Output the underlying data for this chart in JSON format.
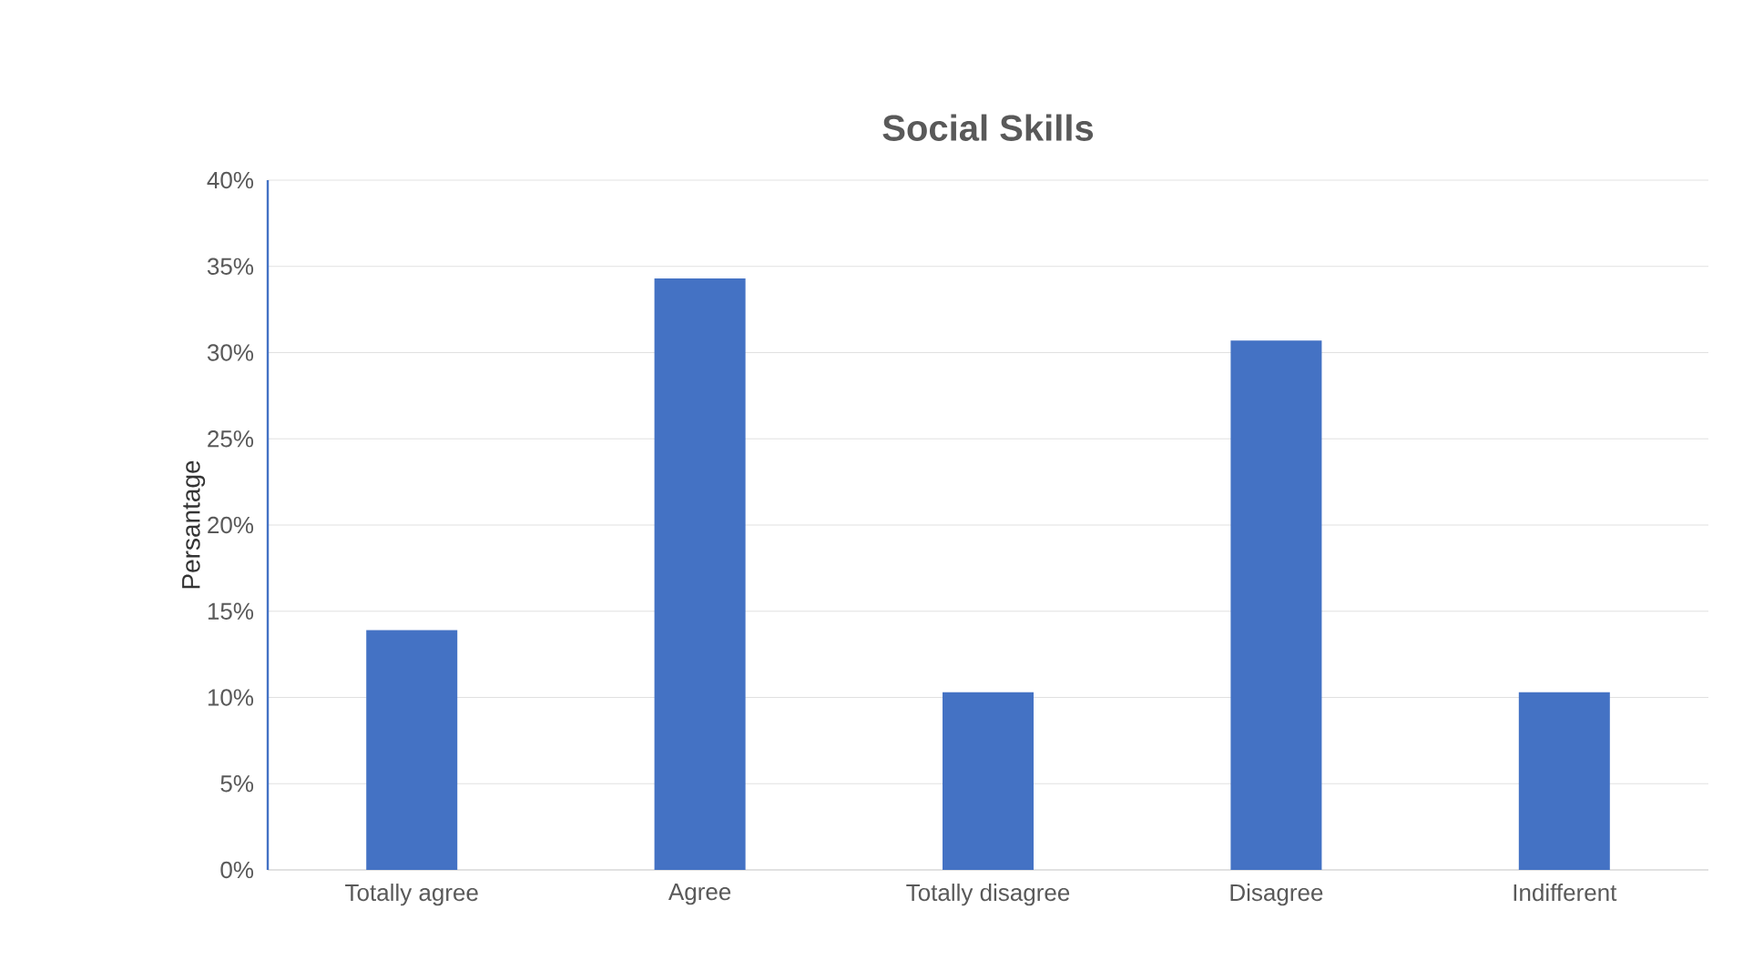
{
  "chart_data": {
    "type": "bar",
    "title": "Social Skills",
    "ylabel": "Persantage",
    "categories": [
      "Totally agree",
      "Agree",
      "Totally disagree",
      "Disagree",
      "Indifferent"
    ],
    "values": [
      13.9,
      34.3,
      10.3,
      30.7,
      10.3
    ],
    "color": "#4472c4",
    "ylim": [
      0,
      40
    ],
    "yticks": [
      {
        "value": 0,
        "label": "0%"
      },
      {
        "value": 5,
        "label": "5%"
      },
      {
        "value": 10,
        "label": "10%"
      },
      {
        "value": 15,
        "label": "15%"
      },
      {
        "value": 20,
        "label": "20%"
      },
      {
        "value": 25,
        "label": "25%"
      },
      {
        "value": 30,
        "label": "30%"
      },
      {
        "value": 35,
        "label": "35%"
      },
      {
        "value": 40,
        "label": "40%"
      }
    ],
    "grid": "y"
  }
}
